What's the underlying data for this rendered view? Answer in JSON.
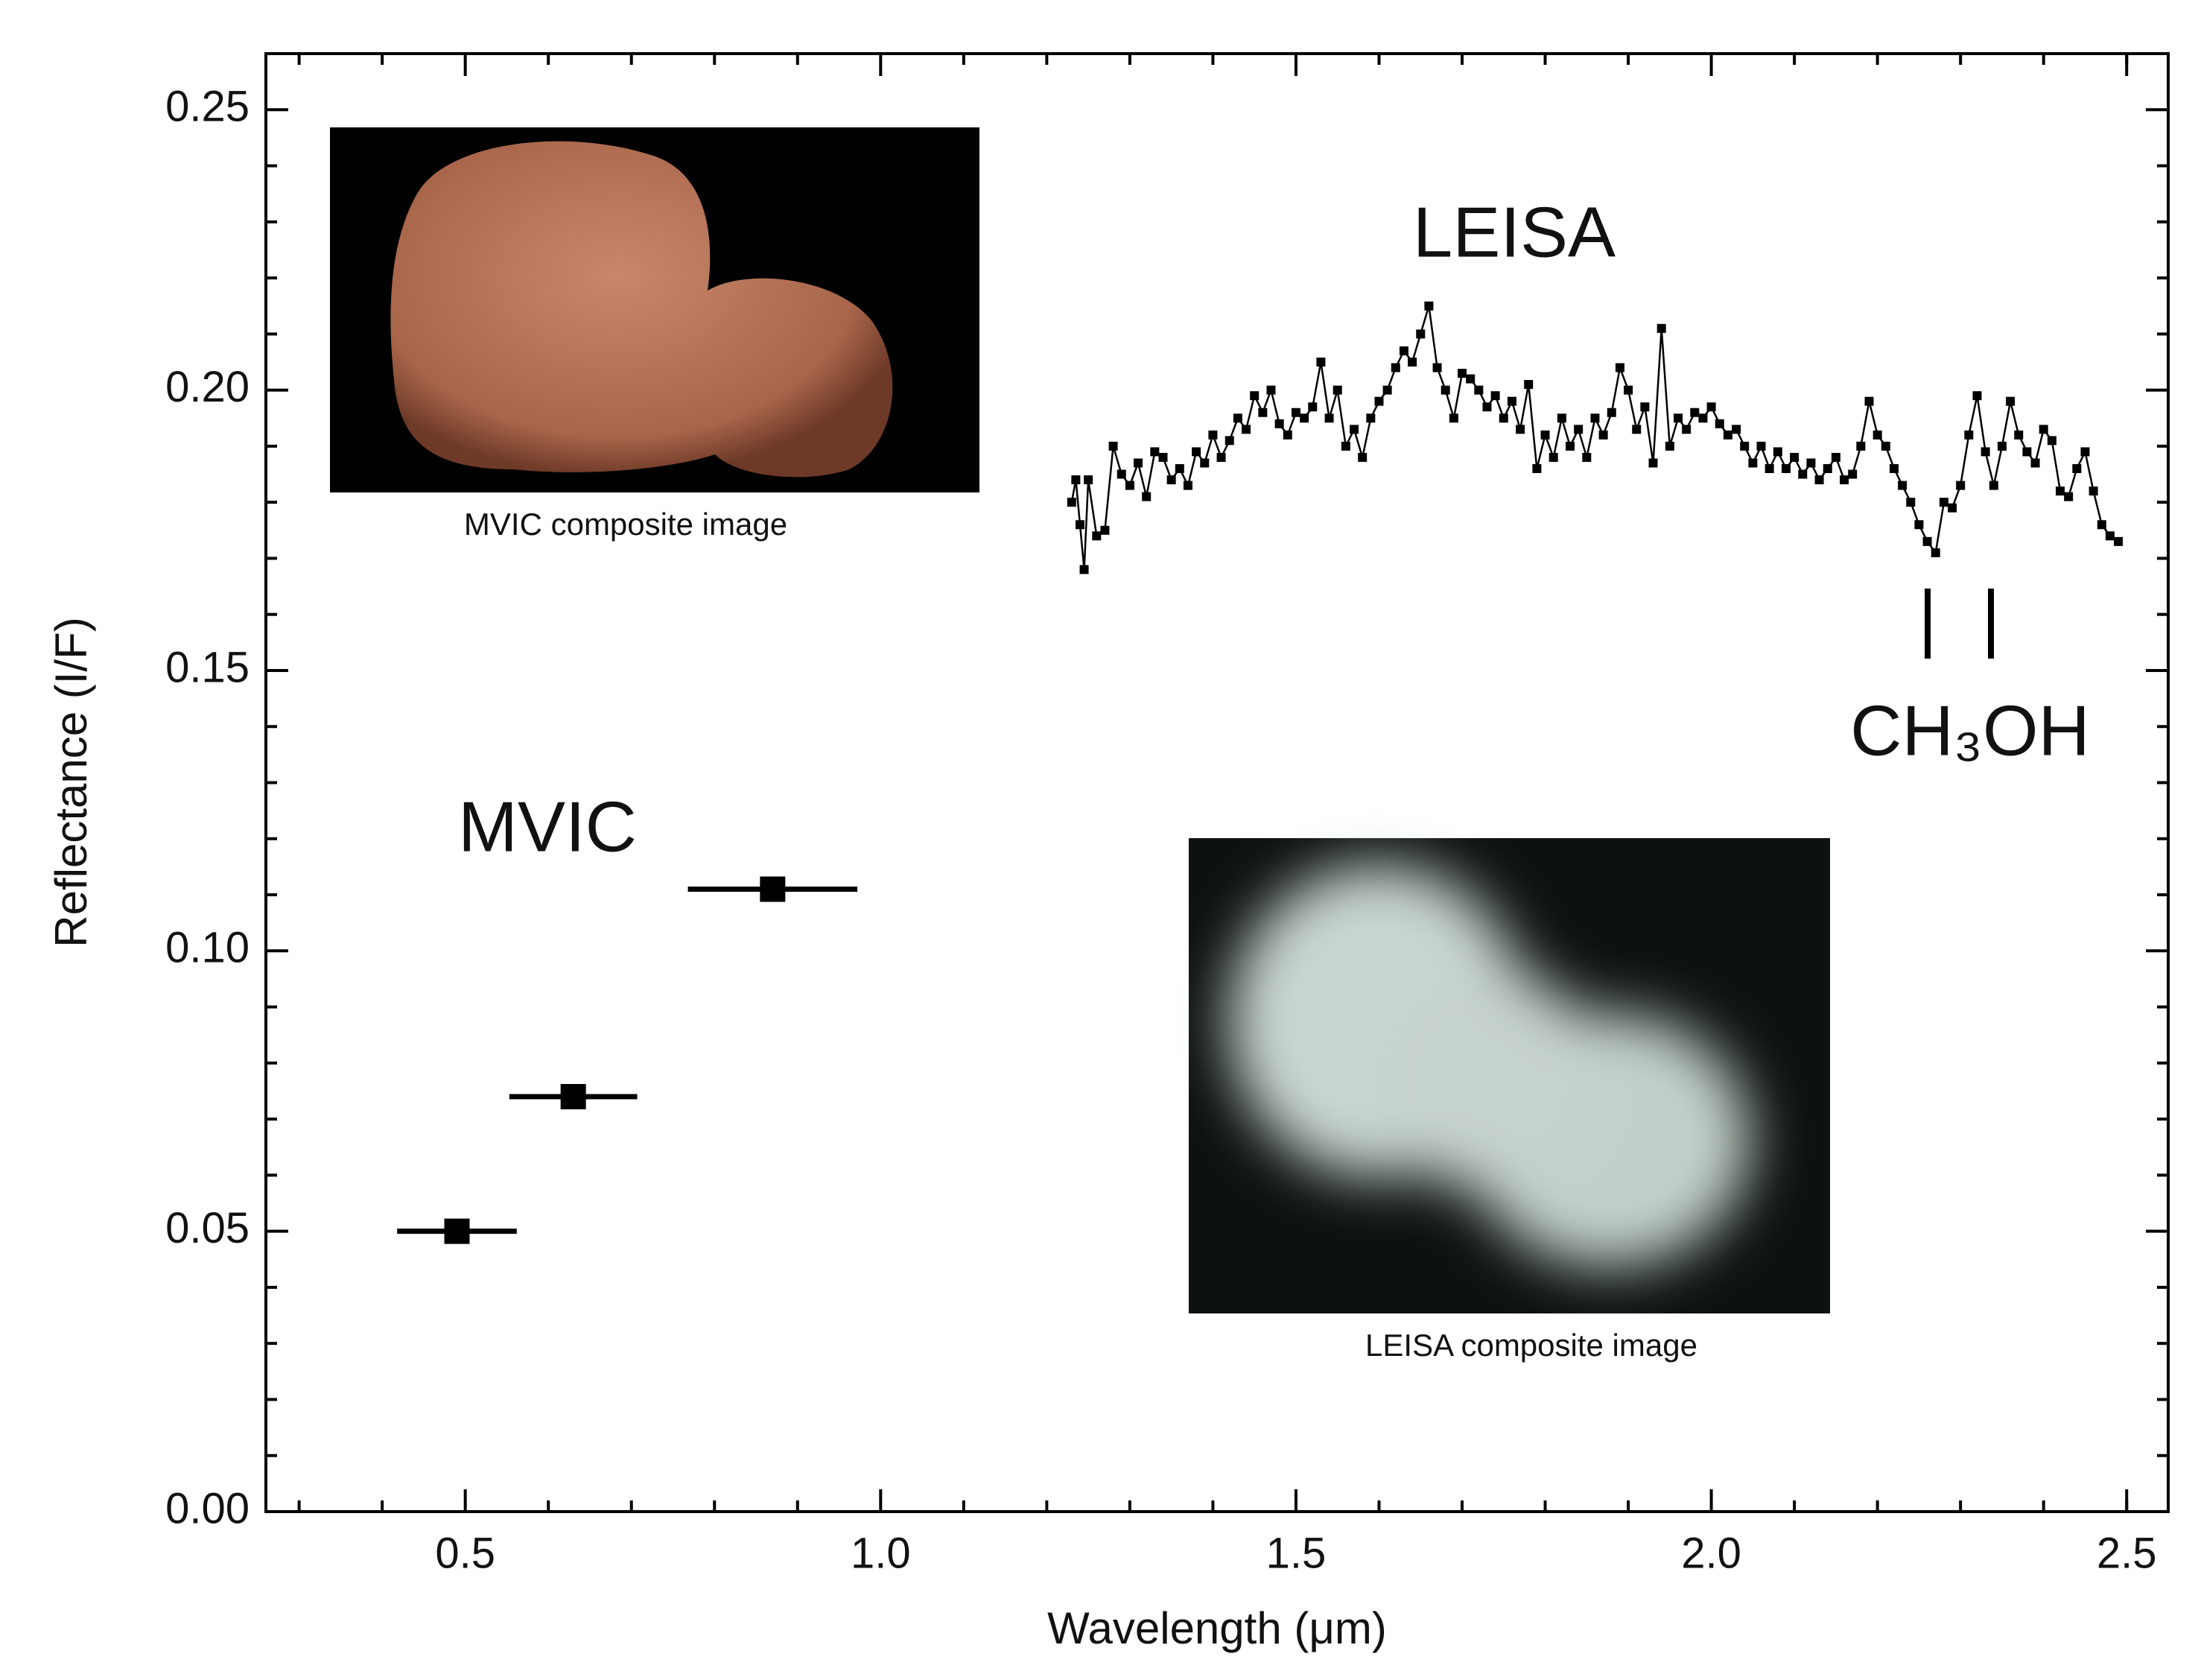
{
  "chart_data": {
    "type": "scatter",
    "x_label": "Wavelength (μm)",
    "y_label": "Reflectance (I/F)",
    "xlim": [
      0.26,
      2.55
    ],
    "ylim": [
      0,
      0.26
    ],
    "xticks": [
      0.5,
      {
        "value": 1.0,
        "label": "1.0"
      },
      1.5,
      {
        "value": 2.0,
        "label": "2.0"
      },
      2.5
    ],
    "yticks": [
      {
        "value": 0.0,
        "label": "0.00"
      },
      0.05,
      {
        "value": 0.1,
        "label": "0.10"
      },
      0.15,
      {
        "value": 0.2,
        "label": "0.20"
      },
      0.25
    ],
    "xminorticks": [
      0.3,
      0.4,
      0.6,
      0.7,
      0.8,
      0.9,
      1.1,
      1.2,
      1.3,
      1.4,
      1.6,
      1.7,
      1.8,
      1.9,
      2.1,
      2.2,
      2.3,
      2.4,
      2.5
    ],
    "yminorticks": [
      0.01,
      0.02,
      0.03,
      0.04,
      0.06,
      0.07,
      0.08,
      0.09,
      0.11,
      0.12,
      0.13,
      0.14,
      0.16,
      0.17,
      0.18,
      0.19,
      0.21,
      0.22,
      0.23,
      0.24
    ],
    "annotations": [
      "LEISA",
      "MVIC",
      "CH₃OH"
    ],
    "insets": [
      "MVIC composite image",
      "LEISA composite image"
    ],
    "series": [
      {
        "type": "errorbar",
        "color": "#000000",
        "x": [
          0.49,
          0.63,
          0.87
        ],
        "values": [
          0.05,
          0.074,
          0.111
        ],
        "xerr": [
          0.072,
          0.077,
          0.102
        ]
      },
      {
        "type": "line",
        "color": "#000000",
        "x": [
          1.23,
          1.235,
          1.24,
          1.245,
          1.25,
          1.26,
          1.27,
          1.28,
          1.29,
          1.3,
          1.31,
          1.32,
          1.33,
          1.34,
          1.35,
          1.36,
          1.37,
          1.38,
          1.39,
          1.4,
          1.41,
          1.42,
          1.43,
          1.44,
          1.45,
          1.46,
          1.47,
          1.48,
          1.49,
          1.5,
          1.51,
          1.52,
          1.53,
          1.54,
          1.55,
          1.56,
          1.57,
          1.58,
          1.59,
          1.6,
          1.61,
          1.62,
          1.63,
          1.64,
          1.65,
          1.66,
          1.67,
          1.68,
          1.69,
          1.7,
          1.71,
          1.72,
          1.73,
          1.74,
          1.75,
          1.76,
          1.77,
          1.78,
          1.79,
          1.8,
          1.81,
          1.82,
          1.83,
          1.84,
          1.85,
          1.86,
          1.87,
          1.88,
          1.89,
          1.9,
          1.91,
          1.92,
          1.93,
          1.94,
          1.95,
          1.96,
          1.97,
          1.98,
          1.99,
          2.0,
          2.01,
          2.02,
          2.03,
          2.04,
          2.05,
          2.06,
          2.07,
          2.08,
          2.09,
          2.1,
          2.11,
          2.12,
          2.13,
          2.14,
          2.15,
          2.16,
          2.17,
          2.18,
          2.19,
          2.2,
          2.21,
          2.22,
          2.23,
          2.24,
          2.25,
          2.26,
          2.27,
          2.28,
          2.29,
          2.3,
          2.31,
          2.32,
          2.33,
          2.34,
          2.35,
          2.36,
          2.37,
          2.38,
          2.39,
          2.4,
          2.41,
          2.42,
          2.43,
          2.44,
          2.45,
          2.46,
          2.47,
          2.48,
          2.49
        ],
        "values": [
          0.18,
          0.184,
          0.176,
          0.168,
          0.184,
          0.174,
          0.175,
          0.19,
          0.185,
          0.183,
          0.187,
          0.181,
          0.189,
          0.188,
          0.184,
          0.186,
          0.183,
          0.189,
          0.187,
          0.192,
          0.188,
          0.191,
          0.195,
          0.193,
          0.199,
          0.196,
          0.2,
          0.194,
          0.192,
          0.196,
          0.195,
          0.197,
          0.205,
          0.195,
          0.2,
          0.19,
          0.193,
          0.188,
          0.195,
          0.198,
          0.2,
          0.204,
          0.207,
          0.205,
          0.21,
          0.215,
          0.204,
          0.2,
          0.195,
          0.203,
          0.202,
          0.2,
          0.197,
          0.199,
          0.195,
          0.198,
          0.193,
          0.201,
          0.186,
          0.192,
          0.188,
          0.195,
          0.19,
          0.193,
          0.188,
          0.195,
          0.192,
          0.196,
          0.204,
          0.2,
          0.193,
          0.197,
          0.187,
          0.211,
          0.19,
          0.195,
          0.193,
          0.196,
          0.195,
          0.197,
          0.194,
          0.192,
          0.193,
          0.19,
          0.187,
          0.19,
          0.186,
          0.189,
          0.186,
          0.188,
          0.185,
          0.187,
          0.184,
          0.186,
          0.188,
          0.184,
          0.185,
          0.19,
          0.198,
          0.192,
          0.19,
          0.186,
          0.183,
          0.18,
          0.176,
          0.173,
          0.171,
          0.18,
          0.179,
          0.183,
          0.192,
          0.199,
          0.189,
          0.183,
          0.19,
          0.198,
          0.192,
          0.189,
          0.187,
          0.193,
          0.191,
          0.182,
          0.181,
          0.186,
          0.189,
          0.182,
          0.176,
          0.174,
          0.173
        ]
      }
    ]
  }
}
